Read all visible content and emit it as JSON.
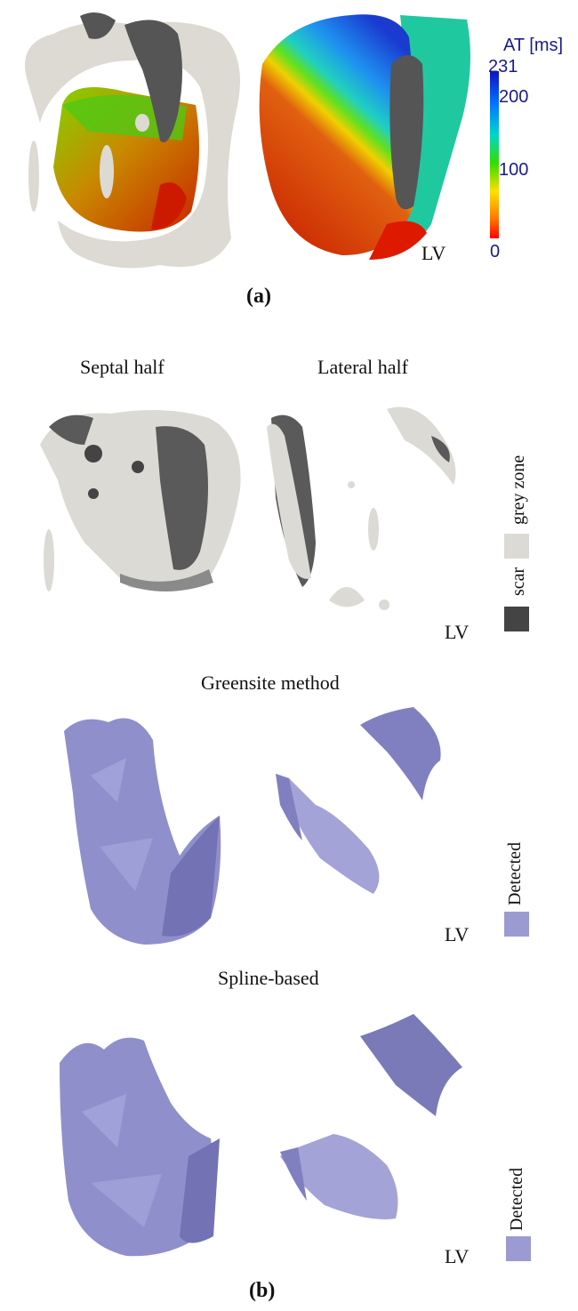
{
  "panel_a": {
    "caption": "(a)",
    "colorbar": {
      "title": "AT [ms]",
      "max_label": "231",
      "tick_200": "200",
      "tick_100": "100",
      "min_label": "0",
      "colors": [
        "#ff0000",
        "#ff8c00",
        "#ffff00",
        "#33dd00",
        "#00d8d8",
        "#0066ff",
        "#1010c8"
      ]
    },
    "lv_label": "LV"
  },
  "panel_b": {
    "caption": "(b)",
    "headers": {
      "septal": "Septal half",
      "lateral": "Lateral half"
    },
    "row1": {
      "lv_label": "LV",
      "legend": [
        {
          "text": "grey zone",
          "color": "#dcdad4"
        },
        {
          "text": "scar",
          "color": "#444444"
        }
      ]
    },
    "row2": {
      "title": "Greensite method",
      "lv_label": "LV",
      "legend_text": "Detected",
      "legend_color": "#9b9bd2"
    },
    "row3": {
      "title": "Spline-based",
      "lv_label": "LV",
      "legend_text": "Detected",
      "legend_color": "#9b9bd2"
    }
  }
}
